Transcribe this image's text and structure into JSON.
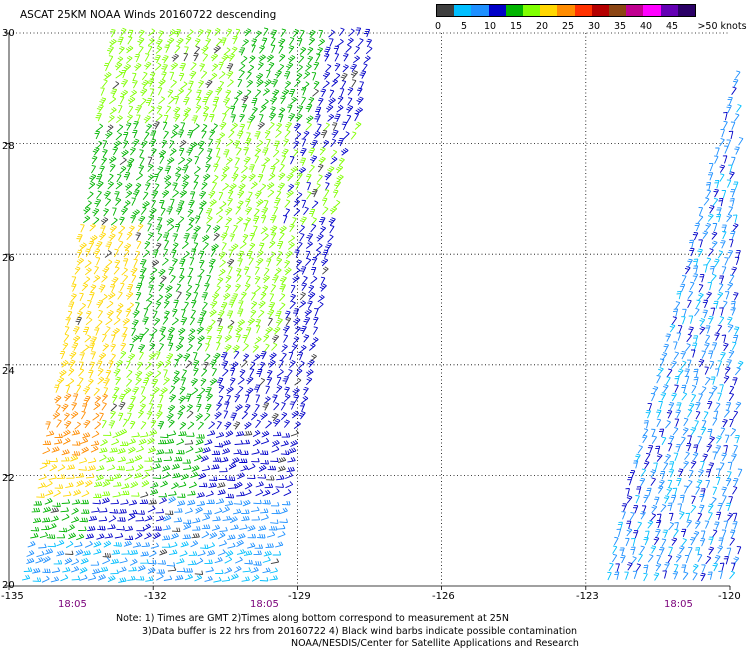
{
  "title": "ASCAT 25KM NOAA Winds 20160722 descending",
  "legend": {
    "labels": [
      "0",
      "5",
      "10",
      "15",
      "20",
      "25",
      "30",
      "35",
      "40",
      "45",
      ">50 knots"
    ],
    "colors": [
      "#3f3f3f",
      "#00bfff",
      "#1e90ff",
      "#0000c8",
      "#00b400",
      "#7fff00",
      "#ffd700",
      "#ff8c00",
      "#ff3200",
      "#b40000",
      "#8b4513",
      "#c00090",
      "#ff00ff",
      "#6400b4",
      "#2a0066"
    ]
  },
  "axes": {
    "y_labels": [
      "30",
      "28",
      "26",
      "24",
      "22",
      "20"
    ],
    "x_labels": [
      "-135",
      "-132",
      "-129",
      "-126",
      "-123",
      "-120"
    ],
    "time_labels": [
      "18:05",
      "18:05",
      "18:05"
    ]
  },
  "map": {
    "lat_range": [
      20,
      30
    ],
    "lon_range": [
      -135,
      -120
    ],
    "gridlines": "dotted",
    "swaths": [
      {
        "name": "western swath",
        "pass_time": "18:05"
      },
      {
        "name": "eastern swath",
        "pass_time": "18:05"
      }
    ]
  },
  "notes": {
    "line1": "Note: 1) Times are GMT 2)Times along bottom correspond to measurement at 25N",
    "line2": "3)Data buffer is 22 hrs from 20160722 4) Black wind barbs indicate possible contamination",
    "line3": "NOAA/NESDIS/Center for Satellite Applications and Research"
  }
}
